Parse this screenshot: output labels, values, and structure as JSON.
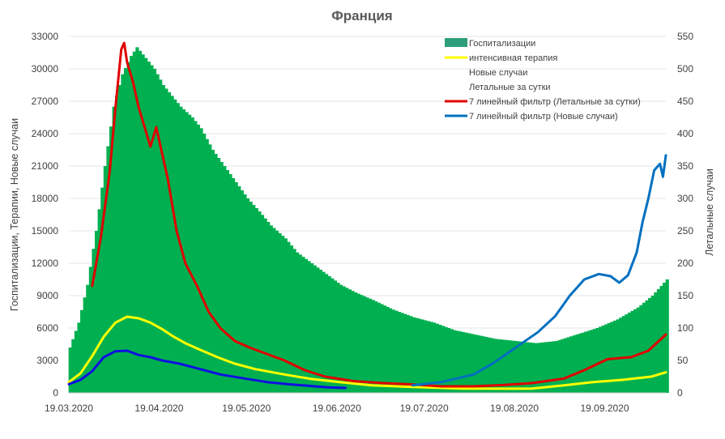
{
  "chart_data": {
    "type": "bar+line",
    "title": "Франция",
    "ylabel_left": "Госпитализации, Терапии, Новые случаи",
    "ylabel_right": "Летальные случаи",
    "xlim": [
      "2020-03-19",
      "2020-10-10"
    ],
    "ylim_left": [
      0,
      33000
    ],
    "ylim_right": [
      0,
      550
    ],
    "yticks_left": [
      0,
      3000,
      6000,
      9000,
      12000,
      15000,
      18000,
      21000,
      24000,
      27000,
      30000,
      33000
    ],
    "yticks_right": [
      0,
      50,
      100,
      150,
      200,
      250,
      300,
      350,
      400,
      450,
      500,
      550
    ],
    "xticks": [
      "19.03.2020",
      "19.04.2020",
      "19.05.2020",
      "19.06.2020",
      "19.07.2020",
      "19.08.2020",
      "19.09.2020"
    ],
    "grid": "horizontal",
    "legend_position": "top-right",
    "legend": [
      "Госпитализации",
      "интенсивная терапия",
      "Новые случаи",
      "Летальные за сутки",
      "7 линейный фильтр (Летальные за сутки)",
      "7 линейный фильтр (Новые случаи)"
    ],
    "colors": {
      "hospital": "#00b050",
      "hospital_legend": "#2e9e7a",
      "icu": "#ffff00",
      "deaths_filter": "#e00000",
      "cases_filter": "#0070c0",
      "cases_early": "#1010e0"
    },
    "series": [
      {
        "name": "Госпитализации",
        "axis": "left",
        "kind": "bars",
        "points": [
          [
            "2020-03-19",
            4200
          ],
          [
            "2020-03-22",
            6500
          ],
          [
            "2020-03-25",
            10000
          ],
          [
            "2020-03-28",
            15000
          ],
          [
            "2020-03-31",
            21000
          ],
          [
            "2020-04-03",
            26500
          ],
          [
            "2020-04-06",
            29500
          ],
          [
            "2020-04-09",
            31200
          ],
          [
            "2020-04-11",
            32000
          ],
          [
            "2020-04-14",
            31000
          ],
          [
            "2020-04-17",
            30000
          ],
          [
            "2020-04-20",
            28500
          ],
          [
            "2020-04-23",
            27500
          ],
          [
            "2020-04-26",
            26500
          ],
          [
            "2020-04-30",
            25500
          ],
          [
            "2020-05-03",
            24500
          ],
          [
            "2020-05-07",
            22500
          ],
          [
            "2020-05-11",
            21000
          ],
          [
            "2020-05-15",
            19500
          ],
          [
            "2020-05-19",
            18000
          ],
          [
            "2020-05-23",
            16800
          ],
          [
            "2020-05-27",
            15500
          ],
          [
            "2020-06-01",
            14300
          ],
          [
            "2020-06-05",
            13000
          ],
          [
            "2020-06-10",
            12000
          ],
          [
            "2020-06-15",
            11000
          ],
          [
            "2020-06-20",
            10000
          ],
          [
            "2020-06-25",
            9300
          ],
          [
            "2020-07-01",
            8600
          ],
          [
            "2020-07-08",
            7700
          ],
          [
            "2020-07-15",
            7000
          ],
          [
            "2020-07-22",
            6500
          ],
          [
            "2020-07-29",
            5800
          ],
          [
            "2020-08-05",
            5400
          ],
          [
            "2020-08-12",
            5000
          ],
          [
            "2020-08-19",
            4800
          ],
          [
            "2020-08-26",
            4600
          ],
          [
            "2020-09-02",
            4800
          ],
          [
            "2020-09-09",
            5400
          ],
          [
            "2020-09-16",
            6000
          ],
          [
            "2020-09-23",
            6800
          ],
          [
            "2020-09-30",
            7900
          ],
          [
            "2020-10-05",
            9000
          ],
          [
            "2020-10-10",
            10500
          ]
        ]
      },
      {
        "name": "интенсивная терапия",
        "axis": "left",
        "kind": "line",
        "points": [
          [
            "2020-03-19",
            1000
          ],
          [
            "2020-03-23",
            1800
          ],
          [
            "2020-03-27",
            3400
          ],
          [
            "2020-03-31",
            5200
          ],
          [
            "2020-04-04",
            6500
          ],
          [
            "2020-04-08",
            7050
          ],
          [
            "2020-04-12",
            6900
          ],
          [
            "2020-04-16",
            6500
          ],
          [
            "2020-04-20",
            5900
          ],
          [
            "2020-04-24",
            5200
          ],
          [
            "2020-04-28",
            4600
          ],
          [
            "2020-05-03",
            4000
          ],
          [
            "2020-05-09",
            3300
          ],
          [
            "2020-05-15",
            2700
          ],
          [
            "2020-05-22",
            2200
          ],
          [
            "2020-06-01",
            1700
          ],
          [
            "2020-06-10",
            1300
          ],
          [
            "2020-06-20",
            1000
          ],
          [
            "2020-07-01",
            700
          ],
          [
            "2020-07-15",
            550
          ],
          [
            "2020-08-01",
            400
          ],
          [
            "2020-08-15",
            380
          ],
          [
            "2020-08-25",
            400
          ],
          [
            "2020-09-05",
            700
          ],
          [
            "2020-09-15",
            1000
          ],
          [
            "2020-09-25",
            1200
          ],
          [
            "2020-10-05",
            1500
          ],
          [
            "2020-10-10",
            1900
          ]
        ]
      },
      {
        "name": "7 линейный фильтр (Летальные за сутки)",
        "axis": "right",
        "kind": "line",
        "points": [
          [
            "2020-03-27",
            165
          ],
          [
            "2020-03-30",
            240
          ],
          [
            "2020-04-02",
            340
          ],
          [
            "2020-04-04",
            440
          ],
          [
            "2020-04-06",
            530
          ],
          [
            "2020-04-07",
            540
          ],
          [
            "2020-04-08",
            510
          ],
          [
            "2020-04-10",
            480
          ],
          [
            "2020-04-12",
            440
          ],
          [
            "2020-04-14",
            410
          ],
          [
            "2020-04-16",
            380
          ],
          [
            "2020-04-18",
            410
          ],
          [
            "2020-04-20",
            370
          ],
          [
            "2020-04-22",
            330
          ],
          [
            "2020-04-25",
            250
          ],
          [
            "2020-04-28",
            200
          ],
          [
            "2020-05-02",
            165
          ],
          [
            "2020-05-06",
            125
          ],
          [
            "2020-05-10",
            100
          ],
          [
            "2020-05-15",
            80
          ],
          [
            "2020-05-20",
            70
          ],
          [
            "2020-05-26",
            60
          ],
          [
            "2020-06-01",
            50
          ],
          [
            "2020-06-08",
            35
          ],
          [
            "2020-06-15",
            25
          ],
          [
            "2020-06-25",
            18
          ],
          [
            "2020-07-05",
            15
          ],
          [
            "2020-07-15",
            13
          ],
          [
            "2020-07-25",
            10
          ],
          [
            "2020-08-05",
            10
          ],
          [
            "2020-08-15",
            12
          ],
          [
            "2020-08-25",
            15
          ],
          [
            "2020-09-05",
            22
          ],
          [
            "2020-09-12",
            35
          ],
          [
            "2020-09-20",
            52
          ],
          [
            "2020-09-28",
            55
          ],
          [
            "2020-10-04",
            65
          ],
          [
            "2020-10-10",
            90
          ]
        ]
      },
      {
        "name": "7 линейный фильтр (Новые случаи)",
        "axis": "left",
        "kind": "line",
        "points": [
          [
            "2020-07-15",
            700
          ],
          [
            "2020-07-25",
            1000
          ],
          [
            "2020-08-05",
            1700
          ],
          [
            "2020-08-12",
            2800
          ],
          [
            "2020-08-20",
            4300
          ],
          [
            "2020-08-27",
            5600
          ],
          [
            "2020-09-02",
            7100
          ],
          [
            "2020-09-07",
            9000
          ],
          [
            "2020-09-12",
            10500
          ],
          [
            "2020-09-17",
            11000
          ],
          [
            "2020-09-21",
            10800
          ],
          [
            "2020-09-24",
            10200
          ],
          [
            "2020-09-27",
            10900
          ],
          [
            "2020-09-30",
            13000
          ],
          [
            "2020-10-02",
            15800
          ],
          [
            "2020-10-04",
            18000
          ],
          [
            "2020-10-06",
            20600
          ],
          [
            "2020-10-08",
            21200
          ],
          [
            "2020-10-09",
            20000
          ],
          [
            "2020-10-10",
            22000
          ]
        ]
      },
      {
        "name": "Новые случаи",
        "axis": "left",
        "kind": "line",
        "points": [
          [
            "2020-03-19",
            800
          ],
          [
            "2020-03-23",
            1200
          ],
          [
            "2020-03-27",
            2000
          ],
          [
            "2020-03-31",
            3300
          ],
          [
            "2020-04-04",
            3850
          ],
          [
            "2020-04-08",
            3900
          ],
          [
            "2020-04-12",
            3500
          ],
          [
            "2020-04-16",
            3300
          ],
          [
            "2020-04-20",
            3000
          ],
          [
            "2020-04-26",
            2700
          ],
          [
            "2020-05-03",
            2200
          ],
          [
            "2020-05-10",
            1700
          ],
          [
            "2020-05-19",
            1300
          ],
          [
            "2020-05-26",
            1000
          ],
          [
            "2020-06-02",
            800
          ],
          [
            "2020-06-09",
            650
          ],
          [
            "2020-06-16",
            500
          ],
          [
            "2020-06-22",
            450
          ]
        ]
      }
    ]
  }
}
